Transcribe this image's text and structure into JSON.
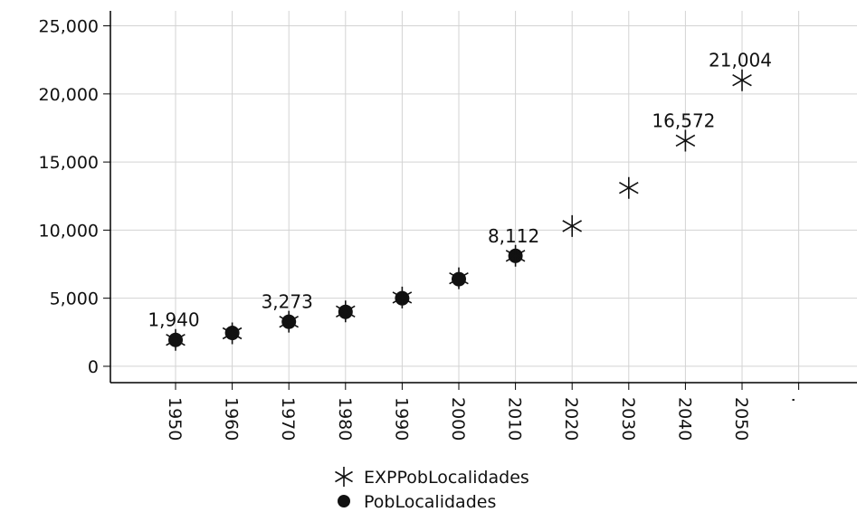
{
  "chart_data": {
    "type": "scatter",
    "title": "",
    "xlabel": "",
    "ylabel": "",
    "ylim": [
      -1200,
      26100
    ],
    "y_ticks": [
      0,
      5000,
      10000,
      15000,
      20000,
      25000
    ],
    "y_tick_labels": [
      "0",
      "5,000",
      "10,000",
      "15,000",
      "20,000",
      "25,000"
    ],
    "categories": [
      "1950",
      "1960",
      "1970",
      "1980",
      "1990",
      "2000",
      "2010",
      "2020",
      "2030",
      "2040",
      "2050",
      "."
    ],
    "grid": true,
    "legend": "bottom-center",
    "series": [
      {
        "name": "EXPPobLocalidades",
        "marker": "star",
        "values": [
          1940,
          2420,
          3273,
          4030,
          5050,
          6460,
          8112,
          10300,
          13100,
          16572,
          21004,
          null
        ]
      },
      {
        "name": "PobLocalidades",
        "marker": "circle",
        "values": [
          1940,
          2450,
          3273,
          4000,
          5000,
          6400,
          8112,
          null,
          null,
          null,
          null,
          null
        ]
      }
    ],
    "data_labels": [
      {
        "category": "1950",
        "value": 1940,
        "text": "1,940"
      },
      {
        "category": "1970",
        "value": 3273,
        "text": "3,273"
      },
      {
        "category": "2010",
        "value": 8112,
        "text": "8,112"
      },
      {
        "category": "2040",
        "value": 16572,
        "text": "16,572"
      },
      {
        "category": "2050",
        "value": 21004,
        "text": "21,004"
      }
    ]
  },
  "colors": {
    "background": "#ffffff",
    "grid": "#d3d3d3",
    "axis": "#000000",
    "marker": "#111111"
  }
}
